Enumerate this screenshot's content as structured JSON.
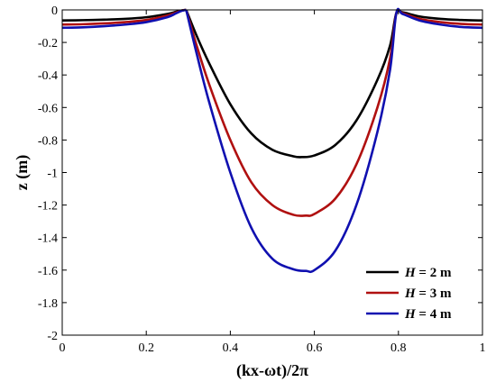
{
  "chart_data": {
    "type": "line",
    "xlabel": "(kx-ωt)/2π",
    "ylabel": "z (m)",
    "xlim": [
      0,
      1
    ],
    "ylim": [
      -2,
      0
    ],
    "xticks": [
      0,
      0.2,
      0.4,
      0.6,
      0.8,
      1
    ],
    "xtick_labels": [
      "0",
      "0.2",
      "0.4",
      "0.6",
      "0.8",
      "1"
    ],
    "yticks": [
      0,
      -0.2,
      -0.4,
      -0.6,
      -0.8,
      -1,
      -1.2,
      -1.4,
      -1.6,
      -1.8,
      -2
    ],
    "ytick_labels": [
      "0",
      "-0.2",
      "-0.4",
      "-0.6",
      "-0.8",
      "-1",
      "-1.2",
      "-1.4",
      "-1.6",
      "-1.8",
      "-2"
    ],
    "grid": false,
    "legend_position": "bottom-right",
    "series": [
      {
        "name": "H = 2 m",
        "color": "#000000",
        "x": [
          0,
          0.05,
          0.1,
          0.15,
          0.2,
          0.25,
          0.27,
          0.285,
          0.295,
          0.32,
          0.35,
          0.4,
          0.45,
          0.5,
          0.55,
          0.57,
          0.6,
          0.65,
          0.7,
          0.75,
          0.78,
          0.795,
          0.81,
          0.85,
          0.9,
          0.95,
          1
        ],
        "y": [
          -0.065,
          -0.063,
          -0.06,
          -0.055,
          -0.045,
          -0.025,
          -0.012,
          -0.003,
          0,
          -0.16,
          -0.33,
          -0.58,
          -0.76,
          -0.86,
          -0.9,
          -0.905,
          -0.895,
          -0.83,
          -0.68,
          -0.43,
          -0.22,
          -0.02,
          -0.015,
          -0.04,
          -0.055,
          -0.062,
          -0.065
        ]
      },
      {
        "name": "H = 3 m",
        "color": "#b01010",
        "x": [
          0,
          0.05,
          0.1,
          0.15,
          0.2,
          0.25,
          0.27,
          0.285,
          0.295,
          0.32,
          0.35,
          0.4,
          0.45,
          0.5,
          0.55,
          0.58,
          0.6,
          0.65,
          0.7,
          0.75,
          0.78,
          0.795,
          0.81,
          0.85,
          0.9,
          0.95,
          1
        ],
        "y": [
          -0.09,
          -0.088,
          -0.083,
          -0.075,
          -0.062,
          -0.035,
          -0.017,
          -0.004,
          0,
          -0.22,
          -0.46,
          -0.8,
          -1.06,
          -1.2,
          -1.26,
          -1.265,
          -1.255,
          -1.16,
          -0.95,
          -0.6,
          -0.3,
          -0.02,
          -0.02,
          -0.055,
          -0.075,
          -0.086,
          -0.09
        ]
      },
      {
        "name": "H = 4 m",
        "color": "#1010b0",
        "x": [
          0,
          0.05,
          0.1,
          0.15,
          0.2,
          0.25,
          0.27,
          0.285,
          0.295,
          0.32,
          0.35,
          0.4,
          0.45,
          0.5,
          0.55,
          0.58,
          0.6,
          0.65,
          0.7,
          0.75,
          0.78,
          0.795,
          0.81,
          0.85,
          0.9,
          0.95,
          1
        ],
        "y": [
          -0.11,
          -0.107,
          -0.1,
          -0.09,
          -0.075,
          -0.045,
          -0.022,
          -0.005,
          0,
          -0.27,
          -0.57,
          -1.0,
          -1.34,
          -1.53,
          -1.595,
          -1.605,
          -1.6,
          -1.48,
          -1.2,
          -0.75,
          -0.37,
          -0.02,
          -0.025,
          -0.065,
          -0.09,
          -0.105,
          -0.11
        ]
      }
    ]
  },
  "legend": {
    "items": [
      {
        "var": "H",
        "rest": " = 2 m",
        "color": "#000000"
      },
      {
        "var": "H",
        "rest": " = 3 m",
        "color": "#b01010"
      },
      {
        "var": "H",
        "rest": " = 4 m",
        "color": "#1010b0"
      }
    ]
  }
}
